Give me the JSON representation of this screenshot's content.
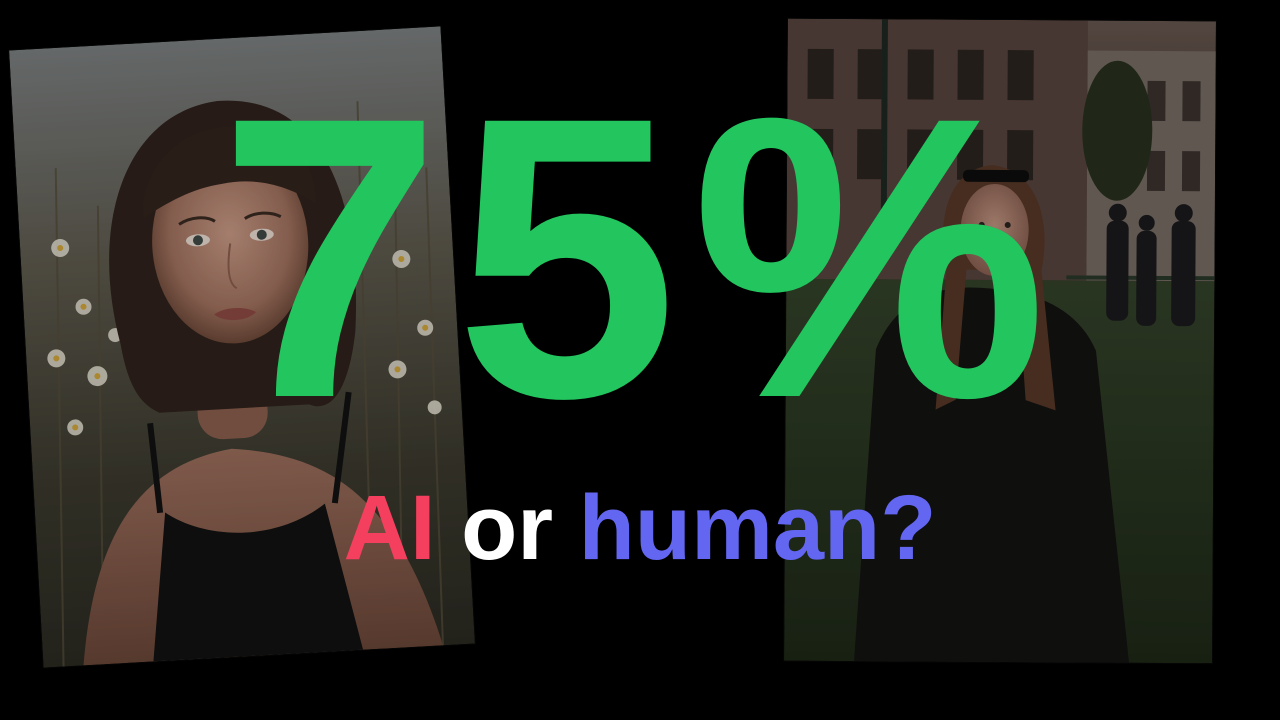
{
  "headline": {
    "percentage": "75%"
  },
  "tagline": {
    "word_ai": "AI",
    "word_or": "or",
    "word_human": "human?"
  },
  "colors": {
    "background": "#000000",
    "percentage": "#22c55e",
    "ai": "#f43f5e",
    "or": "#ffffff",
    "human": "#6366f1"
  },
  "photos": {
    "left": {
      "subject": "portrait-of-woman-with-bob-haircut-in-daisy-field"
    },
    "right": {
      "subject": "woman-in-black-coat-in-city-park"
    }
  }
}
